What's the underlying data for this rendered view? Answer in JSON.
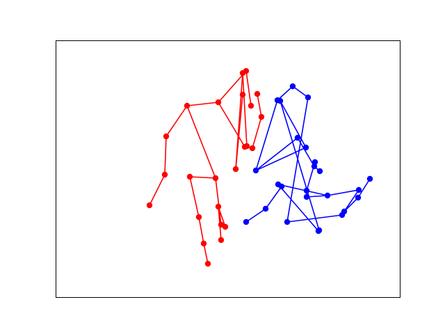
{
  "chart_data": {
    "type": "line",
    "title": "",
    "xlabel": "",
    "ylabel": "",
    "xlim": [
      0,
      495
    ],
    "ylim": [
      0,
      369
    ],
    "grid": false,
    "axes_ticks": false,
    "series": [
      {
        "color": "#ff0000",
        "marker": "circle",
        "points": [
          [
            135,
            132
          ],
          [
            157,
            176
          ],
          [
            159,
            231
          ],
          [
            189,
            275
          ],
          [
            234,
            280
          ],
          [
            272,
            216
          ],
          [
            283,
            214
          ],
          [
            296,
            259
          ],
          [
            290,
            292
          ],
          [
            274,
            325
          ],
          [
            281,
            275
          ],
          [
            269,
            322
          ],
          [
            259,
            184
          ],
          [
            275,
            217
          ],
          [
            269,
            291
          ],
          [
            230,
            171
          ],
          [
            193,
            173
          ],
          [
            206,
            115
          ],
          [
            213,
            77
          ],
          [
            219,
            48
          ],
          [
            238,
            104
          ],
          [
            244,
            101
          ],
          [
            234,
            130
          ],
          [
            238,
            82
          ]
        ],
        "segments": [
          [
            0,
            1
          ],
          [
            1,
            2
          ],
          [
            2,
            3
          ],
          [
            3,
            4
          ],
          [
            4,
            5
          ],
          [
            5,
            6
          ],
          [
            6,
            7
          ],
          [
            7,
            8
          ],
          [
            4,
            9
          ],
          [
            9,
            10
          ],
          [
            9,
            11
          ],
          [
            11,
            12
          ],
          [
            11,
            13
          ],
          [
            12,
            14
          ],
          [
            3,
            15
          ],
          [
            15,
            16
          ],
          [
            16,
            17
          ],
          [
            17,
            18
          ],
          [
            18,
            19
          ],
          [
            15,
            20
          ],
          [
            20,
            21
          ],
          [
            21,
            22
          ],
          [
            22,
            23
          ]
        ]
      },
      {
        "color": "#0000ff",
        "marker": "circle",
        "points": [
          [
            274,
            108
          ],
          [
            302,
            127
          ],
          [
            288,
            182
          ],
          [
            319,
            283
          ],
          [
            341,
            303
          ],
          [
            363,
            287
          ],
          [
            348,
            229
          ],
          [
            372,
            188
          ],
          [
            380,
            181
          ],
          [
            373,
            194
          ],
          [
            361,
            153
          ],
          [
            333,
            108
          ],
          [
            412,
            118
          ],
          [
            415,
            123
          ],
          [
            435,
            143
          ],
          [
            452,
            170
          ],
          [
            436,
            154
          ],
          [
            391,
            146
          ],
          [
            361,
            144
          ],
          [
            325,
            159
          ],
          [
            320,
            162
          ],
          [
            360,
            215
          ],
          [
            323,
            282
          ],
          [
            379,
            96
          ],
          [
            378,
            95
          ]
        ],
        "segments": [
          [
            0,
            1
          ],
          [
            1,
            19
          ],
          [
            19,
            20
          ],
          [
            20,
            17
          ],
          [
            17,
            18
          ],
          [
            18,
            10
          ],
          [
            10,
            9
          ],
          [
            9,
            7
          ],
          [
            7,
            8
          ],
          [
            7,
            6
          ],
          [
            6,
            2
          ],
          [
            2,
            3
          ],
          [
            3,
            4
          ],
          [
            4,
            5
          ],
          [
            5,
            11
          ],
          [
            11,
            12
          ],
          [
            12,
            13
          ],
          [
            13,
            14
          ],
          [
            14,
            15
          ],
          [
            13,
            16
          ],
          [
            16,
            17
          ],
          [
            2,
            21
          ],
          [
            21,
            22
          ],
          [
            22,
            23
          ],
          [
            23,
            24
          ],
          [
            24,
            20
          ]
        ]
      }
    ]
  }
}
